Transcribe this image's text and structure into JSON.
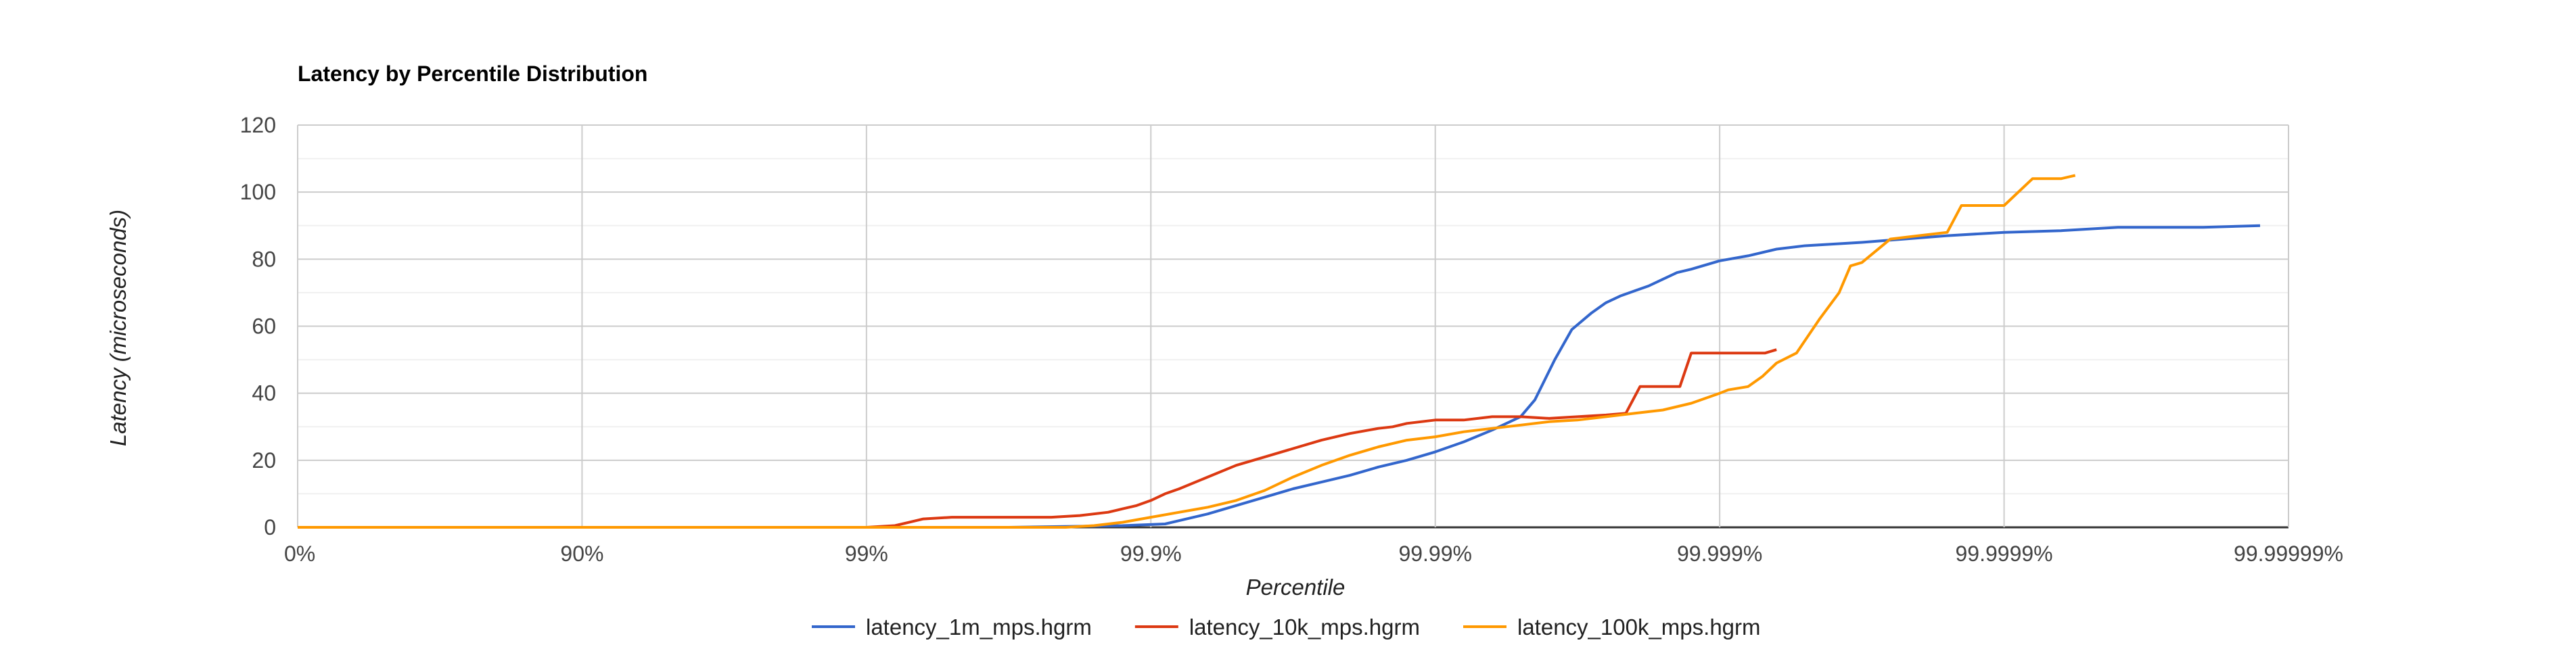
{
  "chart_data": {
    "type": "line",
    "title": "Latency by Percentile Distribution",
    "xlabel": "Percentile",
    "ylabel": "Latency (microseconds)",
    "x_scale": "log-nines",
    "x_ticks": [
      "0%",
      "90%",
      "99%",
      "99.9%",
      "99.99%",
      "99.999%",
      "99.9999%",
      "99.99999%"
    ],
    "x_ticks_nines": [
      0,
      1,
      2,
      3,
      4,
      5,
      6,
      7
    ],
    "xlim_nines": [
      0,
      7
    ],
    "ylim": [
      0,
      120
    ],
    "y_ticks": [
      "0",
      "20",
      "40",
      "60",
      "80",
      "100",
      "120"
    ],
    "y_ticks_values": [
      0,
      20,
      40,
      60,
      80,
      100,
      120
    ],
    "grid": true,
    "legend_position": "bottom",
    "series": [
      {
        "name": "latency_1m_mps.hgrm",
        "color": "#3366cc",
        "nines": [
          0,
          2.5,
          2.9,
          3.05,
          3.1,
          3.2,
          3.3,
          3.4,
          3.5,
          3.6,
          3.7,
          3.8,
          3.9,
          4.0,
          4.1,
          4.2,
          4.3,
          4.35,
          4.42,
          4.48,
          4.55,
          4.6,
          4.65,
          4.7,
          4.75,
          4.8,
          4.85,
          4.9,
          5.0,
          5.1,
          5.2,
          5.3,
          5.5,
          5.8,
          6.0,
          6.2,
          6.4,
          6.7,
          6.9
        ],
        "values": [
          0,
          0,
          0.5,
          1,
          2,
          4,
          6.5,
          9,
          11.5,
          13.5,
          15.5,
          18,
          20,
          22.5,
          25.5,
          29,
          33,
          38,
          50,
          59,
          64,
          67,
          69,
          70.5,
          72,
          74,
          76,
          77,
          79.5,
          81,
          83,
          84,
          85,
          87,
          88,
          88.5,
          89.5,
          89.5,
          90
        ]
      },
      {
        "name": "latency_10k_mps.hgrm",
        "color": "#dc3912",
        "nines": [
          0,
          2.0,
          2.1,
          2.15,
          2.2,
          2.3,
          2.5,
          2.65,
          2.75,
          2.85,
          2.9,
          2.95,
          3.0,
          3.05,
          3.1,
          3.2,
          3.3,
          3.4,
          3.5,
          3.6,
          3.7,
          3.8,
          3.85,
          3.9,
          4.0,
          4.05,
          4.1,
          4.2,
          4.3,
          4.4,
          4.5,
          4.6,
          4.67,
          4.72,
          4.8,
          4.86,
          4.9,
          5.0,
          5.1,
          5.16,
          5.2
        ],
        "values": [
          0,
          0,
          0.5,
          1.5,
          2.5,
          3,
          3,
          3,
          3.5,
          4.5,
          5.5,
          6.5,
          8,
          10,
          11.5,
          15,
          18.5,
          21,
          23.5,
          26,
          28,
          29.5,
          30,
          31,
          32,
          32,
          32,
          33,
          33,
          32.5,
          33,
          33.5,
          34,
          42,
          42,
          42,
          52,
          52,
          52,
          52,
          53
        ]
      },
      {
        "name": "latency_100k_mps.hgrm",
        "color": "#ff9900",
        "nines": [
          0,
          2.7,
          2.8,
          2.9,
          3.0,
          3.1,
          3.2,
          3.3,
          3.4,
          3.5,
          3.6,
          3.7,
          3.8,
          3.9,
          4.0,
          4.1,
          4.2,
          4.3,
          4.4,
          4.5,
          4.6,
          4.7,
          4.8,
          4.9,
          5.0,
          5.03,
          5.1,
          5.15,
          5.2,
          5.27,
          5.35,
          5.42,
          5.46,
          5.5,
          5.6,
          5.7,
          5.8,
          5.85,
          5.95,
          6.0,
          6.1,
          6.15,
          6.2,
          6.25
        ],
        "values": [
          0,
          0,
          0.5,
          1.5,
          3,
          4.5,
          6,
          8,
          11,
          15,
          18.5,
          21.5,
          24,
          26,
          27,
          28.5,
          29.5,
          30.5,
          31.5,
          32,
          33,
          34,
          35,
          37,
          40,
          41,
          42,
          45,
          49,
          52,
          62,
          70,
          78,
          79,
          86,
          87,
          88,
          96,
          96,
          96,
          104,
          104,
          104,
          105
        ]
      }
    ]
  }
}
